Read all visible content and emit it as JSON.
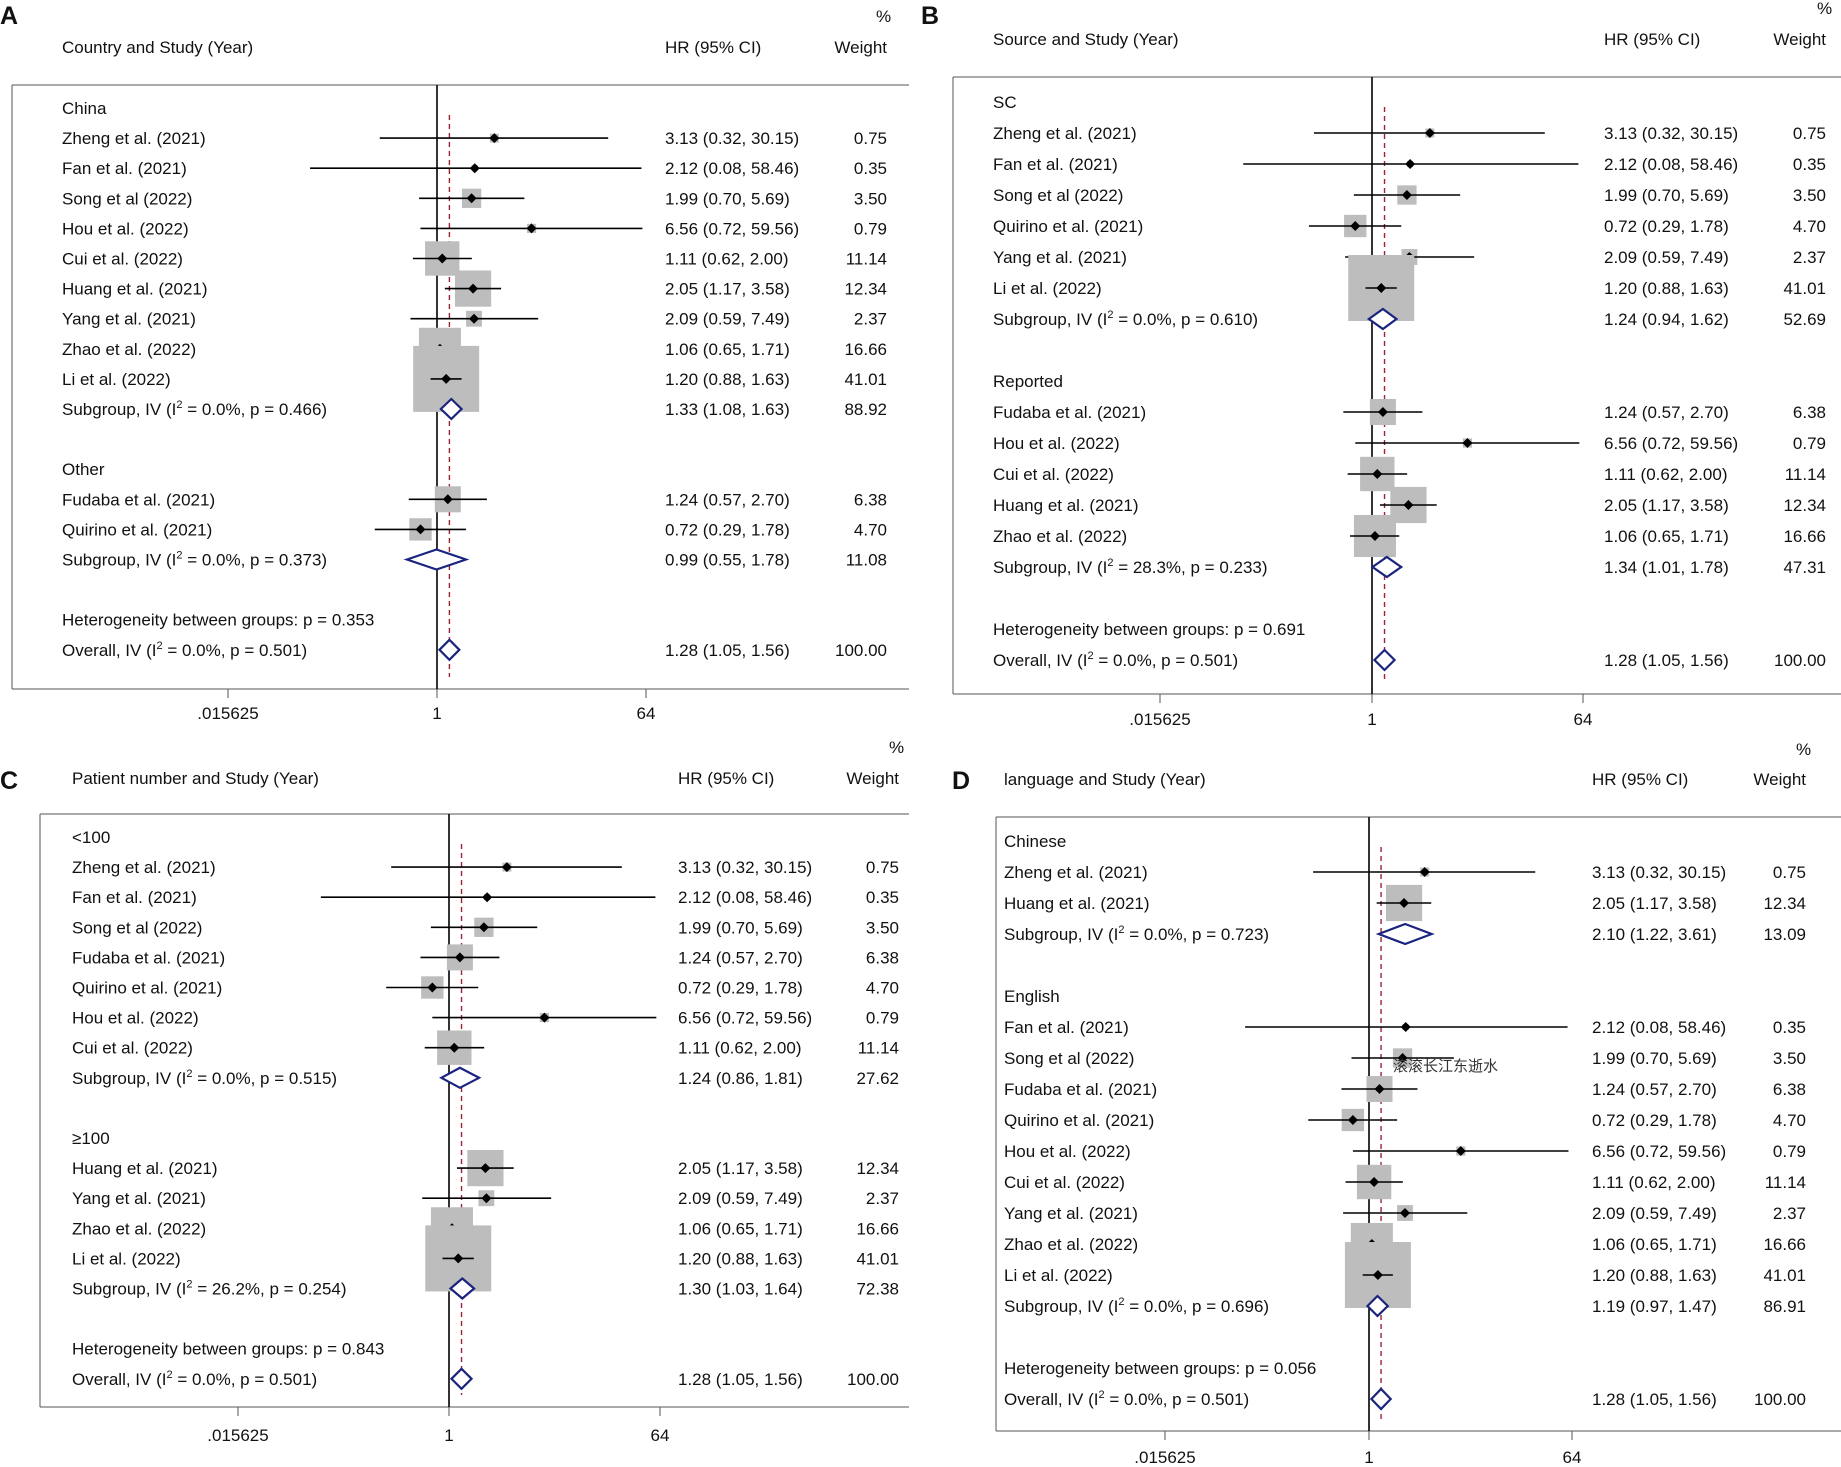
{
  "colors": {
    "null_line": "#000000",
    "overall_line": "#9b2335",
    "box": "#bdbdbd",
    "diamond": "#1a237e",
    "frame": "#555555",
    "text": "#111111"
  },
  "watermark": "滚滚长江东逝水",
  "chart_data": [
    {
      "type": "forest",
      "panel": "A",
      "header": {
        "study_col": "Country and Study (Year)",
        "ci_col": "HR (95% CI)",
        "weight_pct": "%",
        "weight_col": "Weight"
      },
      "xscale": "log2",
      "xlim": [
        0.015625,
        64
      ],
      "ticks": [
        {
          "value": 0.015625,
          "label": ".015625"
        },
        {
          "value": 1,
          "label": "1"
        },
        {
          "value": 64,
          "label": "64"
        }
      ],
      "overall_effect": 1.28,
      "rows": [
        {
          "kind": "group",
          "label": "China"
        },
        {
          "kind": "study",
          "label": "Zheng et al. (2021)",
          "hr": 3.13,
          "lo": 0.32,
          "hi": 30.15,
          "ci": "3.13 (0.32, 30.15)",
          "weight": "0.75"
        },
        {
          "kind": "study",
          "label": "Fan et al. (2021)",
          "hr": 2.12,
          "lo": 0.08,
          "hi": 58.46,
          "ci": "2.12 (0.08, 58.46)",
          "weight": "0.35"
        },
        {
          "kind": "study",
          "label": "Song  et al (2022)",
          "hr": 1.99,
          "lo": 0.7,
          "hi": 5.69,
          "ci": "1.99 (0.70, 5.69)",
          "weight": "3.50"
        },
        {
          "kind": "study",
          "label": "Hou et al. (2022)",
          "hr": 6.56,
          "lo": 0.72,
          "hi": 59.56,
          "ci": "6.56 (0.72, 59.56)",
          "weight": "0.79"
        },
        {
          "kind": "study",
          "label": "Cui et al. (2022)",
          "hr": 1.11,
          "lo": 0.62,
          "hi": 2.0,
          "ci": "1.11 (0.62, 2.00)",
          "weight": "11.14"
        },
        {
          "kind": "study",
          "label": "Huang et al. (2021)",
          "hr": 2.05,
          "lo": 1.17,
          "hi": 3.58,
          "ci": "2.05 (1.17, 3.58)",
          "weight": "12.34"
        },
        {
          "kind": "study",
          "label": "Yang et al. (2021)",
          "hr": 2.09,
          "lo": 0.59,
          "hi": 7.49,
          "ci": "2.09 (0.59, 7.49)",
          "weight": "2.37"
        },
        {
          "kind": "study",
          "label": "Zhao et al. (2022)",
          "hr": 1.06,
          "lo": 0.65,
          "hi": 1.71,
          "ci": "1.06 (0.65, 1.71)",
          "weight": "16.66"
        },
        {
          "kind": "study",
          "label": "Li et al. (2022)",
          "hr": 1.2,
          "lo": 0.88,
          "hi": 1.63,
          "ci": "1.20 (0.88, 1.63)",
          "weight": "41.01"
        },
        {
          "kind": "subgroup",
          "label": "Subgroup, IV (I",
          "stat": " = 0.0%, p = 0.466)",
          "hr": 1.33,
          "lo": 1.08,
          "hi": 1.63,
          "ci": "1.33 (1.08, 1.63)",
          "weight": "88.92"
        },
        {
          "kind": "blank"
        },
        {
          "kind": "group",
          "label": "Other"
        },
        {
          "kind": "study",
          "label": "Fudaba et al. (2021)",
          "hr": 1.24,
          "lo": 0.57,
          "hi": 2.7,
          "ci": "1.24 (0.57, 2.70)",
          "weight": "6.38"
        },
        {
          "kind": "study",
          "label": "Quirino et al. (2021)",
          "hr": 0.72,
          "lo": 0.29,
          "hi": 1.78,
          "ci": "0.72 (0.29, 1.78)",
          "weight": "4.70"
        },
        {
          "kind": "subgroup",
          "label": "Subgroup, IV (I",
          "stat": " = 0.0%, p = 0.373)",
          "hr": 0.99,
          "lo": 0.55,
          "hi": 1.78,
          "ci": "0.99 (0.55, 1.78)",
          "weight": "11.08"
        },
        {
          "kind": "blank"
        },
        {
          "kind": "text",
          "label": "Heterogeneity between groups: p = 0.353"
        },
        {
          "kind": "overall",
          "label": "Overall, IV (I",
          "stat": " = 0.0%, p = 0.501)",
          "hr": 1.28,
          "lo": 1.05,
          "hi": 1.56,
          "ci": "1.28 (1.05, 1.56)",
          "weight": "100.00"
        }
      ]
    },
    {
      "type": "forest",
      "panel": "B",
      "header": {
        "study_col": "Source and Study (Year)",
        "ci_col": "HR (95% CI)",
        "weight_pct": "%",
        "weight_col": "Weight"
      },
      "xscale": "log2",
      "xlim": [
        0.015625,
        64
      ],
      "ticks": [
        {
          "value": 0.015625,
          "label": ".015625"
        },
        {
          "value": 1,
          "label": "1"
        },
        {
          "value": 64,
          "label": "64"
        }
      ],
      "overall_effect": 1.28,
      "rows": [
        {
          "kind": "group",
          "label": "SC"
        },
        {
          "kind": "study",
          "label": "Zheng et al. (2021)",
          "hr": 3.13,
          "lo": 0.32,
          "hi": 30.15,
          "ci": "3.13 (0.32, 30.15)",
          "weight": "0.75"
        },
        {
          "kind": "study",
          "label": "Fan et al. (2021)",
          "hr": 2.12,
          "lo": 0.08,
          "hi": 58.46,
          "ci": "2.12 (0.08, 58.46)",
          "weight": "0.35"
        },
        {
          "kind": "study",
          "label": "Song  et al (2022)",
          "hr": 1.99,
          "lo": 0.7,
          "hi": 5.69,
          "ci": "1.99 (0.70, 5.69)",
          "weight": "3.50"
        },
        {
          "kind": "study",
          "label": "Quirino et al. (2021)",
          "hr": 0.72,
          "lo": 0.29,
          "hi": 1.78,
          "ci": "0.72 (0.29, 1.78)",
          "weight": "4.70"
        },
        {
          "kind": "study",
          "label": "Yang et al. (2021)",
          "hr": 2.09,
          "lo": 0.59,
          "hi": 7.49,
          "ci": "2.09 (0.59, 7.49)",
          "weight": "2.37"
        },
        {
          "kind": "study",
          "label": "Li et al. (2022)",
          "hr": 1.2,
          "lo": 0.88,
          "hi": 1.63,
          "ci": "1.20 (0.88, 1.63)",
          "weight": "41.01"
        },
        {
          "kind": "subgroup",
          "label": "Subgroup, IV (I",
          "stat": " = 0.0%, p = 0.610)",
          "hr": 1.24,
          "lo": 0.94,
          "hi": 1.62,
          "ci": "1.24 (0.94, 1.62)",
          "weight": "52.69"
        },
        {
          "kind": "blank"
        },
        {
          "kind": "group",
          "label": "Reported"
        },
        {
          "kind": "study",
          "label": "Fudaba et al. (2021)",
          "hr": 1.24,
          "lo": 0.57,
          "hi": 2.7,
          "ci": "1.24 (0.57, 2.70)",
          "weight": "6.38"
        },
        {
          "kind": "study",
          "label": "Hou et al. (2022)",
          "hr": 6.56,
          "lo": 0.72,
          "hi": 59.56,
          "ci": "6.56 (0.72, 59.56)",
          "weight": "0.79"
        },
        {
          "kind": "study",
          "label": "Cui et al. (2022)",
          "hr": 1.11,
          "lo": 0.62,
          "hi": 2.0,
          "ci": "1.11 (0.62, 2.00)",
          "weight": "11.14"
        },
        {
          "kind": "study",
          "label": "Huang et al. (2021)",
          "hr": 2.05,
          "lo": 1.17,
          "hi": 3.58,
          "ci": "2.05 (1.17, 3.58)",
          "weight": "12.34"
        },
        {
          "kind": "study",
          "label": "Zhao et al. (2022)",
          "hr": 1.06,
          "lo": 0.65,
          "hi": 1.71,
          "ci": "1.06 (0.65, 1.71)",
          "weight": "16.66"
        },
        {
          "kind": "subgroup",
          "label": "Subgroup, IV (I",
          "stat": " = 28.3%, p = 0.233)",
          "hr": 1.34,
          "lo": 1.01,
          "hi": 1.78,
          "ci": "1.34 (1.01, 1.78)",
          "weight": "47.31"
        },
        {
          "kind": "blank"
        },
        {
          "kind": "text",
          "label": "Heterogeneity between groups: p = 0.691"
        },
        {
          "kind": "overall",
          "label": "Overall, IV (I",
          "stat": " = 0.0%, p = 0.501)",
          "hr": 1.28,
          "lo": 1.05,
          "hi": 1.56,
          "ci": "1.28 (1.05, 1.56)",
          "weight": "100.00"
        }
      ]
    },
    {
      "type": "forest",
      "panel": "C",
      "header": {
        "study_col": "Patient number and Study (Year)",
        "ci_col": "HR (95% CI)",
        "weight_pct": "%",
        "weight_col": "Weight"
      },
      "xscale": "log2",
      "xlim": [
        0.015625,
        64
      ],
      "ticks": [
        {
          "value": 0.015625,
          "label": ".015625"
        },
        {
          "value": 1,
          "label": "1"
        },
        {
          "value": 64,
          "label": "64"
        }
      ],
      "overall_effect": 1.28,
      "rows": [
        {
          "kind": "group",
          "label": "<100"
        },
        {
          "kind": "study",
          "label": "Zheng et al. (2021)",
          "hr": 3.13,
          "lo": 0.32,
          "hi": 30.15,
          "ci": "3.13 (0.32, 30.15)",
          "weight": "0.75"
        },
        {
          "kind": "study",
          "label": "Fan et al. (2021)",
          "hr": 2.12,
          "lo": 0.08,
          "hi": 58.46,
          "ci": "2.12 (0.08, 58.46)",
          "weight": "0.35"
        },
        {
          "kind": "study",
          "label": "Song  et al (2022)",
          "hr": 1.99,
          "lo": 0.7,
          "hi": 5.69,
          "ci": "1.99 (0.70, 5.69)",
          "weight": "3.50"
        },
        {
          "kind": "study",
          "label": "Fudaba et al. (2021)",
          "hr": 1.24,
          "lo": 0.57,
          "hi": 2.7,
          "ci": "1.24 (0.57, 2.70)",
          "weight": "6.38"
        },
        {
          "kind": "study",
          "label": "Quirino et al. (2021)",
          "hr": 0.72,
          "lo": 0.29,
          "hi": 1.78,
          "ci": "0.72 (0.29, 1.78)",
          "weight": "4.70"
        },
        {
          "kind": "study",
          "label": "Hou et al. (2022)",
          "hr": 6.56,
          "lo": 0.72,
          "hi": 59.56,
          "ci": "6.56 (0.72, 59.56)",
          "weight": "0.79"
        },
        {
          "kind": "study",
          "label": "Cui et al. (2022)",
          "hr": 1.11,
          "lo": 0.62,
          "hi": 2.0,
          "ci": "1.11 (0.62, 2.00)",
          "weight": "11.14"
        },
        {
          "kind": "subgroup",
          "label": "Subgroup, IV (I",
          "stat": " = 0.0%, p = 0.515)",
          "hr": 1.24,
          "lo": 0.86,
          "hi": 1.81,
          "ci": "1.24 (0.86, 1.81)",
          "weight": "27.62"
        },
        {
          "kind": "blank"
        },
        {
          "kind": "group",
          "label": "≥100"
        },
        {
          "kind": "study",
          "label": "Huang et al. (2021)",
          "hr": 2.05,
          "lo": 1.17,
          "hi": 3.58,
          "ci": "2.05 (1.17, 3.58)",
          "weight": "12.34"
        },
        {
          "kind": "study",
          "label": "Yang et al. (2021)",
          "hr": 2.09,
          "lo": 0.59,
          "hi": 7.49,
          "ci": "2.09 (0.59, 7.49)",
          "weight": "2.37"
        },
        {
          "kind": "study",
          "label": "Zhao et al. (2022)",
          "hr": 1.06,
          "lo": 0.65,
          "hi": 1.71,
          "ci": "1.06 (0.65, 1.71)",
          "weight": "16.66"
        },
        {
          "kind": "study",
          "label": "Li et al. (2022)",
          "hr": 1.2,
          "lo": 0.88,
          "hi": 1.63,
          "ci": "1.20 (0.88, 1.63)",
          "weight": "41.01"
        },
        {
          "kind": "subgroup",
          "label": "Subgroup, IV (I",
          "stat": " = 26.2%, p = 0.254)",
          "hr": 1.3,
          "lo": 1.03,
          "hi": 1.64,
          "ci": "1.30 (1.03, 1.64)",
          "weight": "72.38"
        },
        {
          "kind": "blank"
        },
        {
          "kind": "text",
          "label": "Heterogeneity between groups: p = 0.843"
        },
        {
          "kind": "overall",
          "label": "Overall, IV (I",
          "stat": " = 0.0%, p = 0.501)",
          "hr": 1.28,
          "lo": 1.05,
          "hi": 1.56,
          "ci": "1.28 (1.05, 1.56)",
          "weight": "100.00"
        }
      ]
    },
    {
      "type": "forest",
      "panel": "D",
      "header": {
        "study_col": "language and Study (Year)",
        "ci_col": "HR (95% CI)",
        "weight_pct": "%",
        "weight_col": "Weight"
      },
      "xscale": "log2",
      "xlim": [
        0.015625,
        64
      ],
      "ticks": [
        {
          "value": 0.015625,
          "label": ".015625"
        },
        {
          "value": 1,
          "label": "1"
        },
        {
          "value": 64,
          "label": "64"
        }
      ],
      "overall_effect": 1.28,
      "rows": [
        {
          "kind": "group",
          "label": "Chinese"
        },
        {
          "kind": "study",
          "label": "Zheng et al. (2021)",
          "hr": 3.13,
          "lo": 0.32,
          "hi": 30.15,
          "ci": "3.13 (0.32, 30.15)",
          "weight": "0.75"
        },
        {
          "kind": "study",
          "label": "Huang et al. (2021)",
          "hr": 2.05,
          "lo": 1.17,
          "hi": 3.58,
          "ci": "2.05 (1.17, 3.58)",
          "weight": "12.34"
        },
        {
          "kind": "subgroup",
          "label": "Subgroup, IV (I",
          "stat": " = 0.0%, p = 0.723)",
          "hr": 2.1,
          "lo": 1.22,
          "hi": 3.61,
          "ci": "2.10 (1.22, 3.61)",
          "weight": "13.09"
        },
        {
          "kind": "blank"
        },
        {
          "kind": "group",
          "label": "English"
        },
        {
          "kind": "study",
          "label": "Fan et al. (2021)",
          "hr": 2.12,
          "lo": 0.08,
          "hi": 58.46,
          "ci": "2.12 (0.08, 58.46)",
          "weight": "0.35"
        },
        {
          "kind": "study",
          "label": "Song  et al (2022)",
          "hr": 1.99,
          "lo": 0.7,
          "hi": 5.69,
          "ci": "1.99 (0.70, 5.69)",
          "weight": "3.50"
        },
        {
          "kind": "study",
          "label": "Fudaba et al. (2021)",
          "hr": 1.24,
          "lo": 0.57,
          "hi": 2.7,
          "ci": "1.24 (0.57, 2.70)",
          "weight": "6.38"
        },
        {
          "kind": "study",
          "label": "Quirino et al. (2021)",
          "hr": 0.72,
          "lo": 0.29,
          "hi": 1.78,
          "ci": "0.72 (0.29, 1.78)",
          "weight": "4.70"
        },
        {
          "kind": "study",
          "label": "Hou et al. (2022)",
          "hr": 6.56,
          "lo": 0.72,
          "hi": 59.56,
          "ci": "6.56 (0.72, 59.56)",
          "weight": "0.79"
        },
        {
          "kind": "study",
          "label": "Cui et al. (2022)",
          "hr": 1.11,
          "lo": 0.62,
          "hi": 2.0,
          "ci": "1.11 (0.62, 2.00)",
          "weight": "11.14"
        },
        {
          "kind": "study",
          "label": "Yang et al. (2021)",
          "hr": 2.09,
          "lo": 0.59,
          "hi": 7.49,
          "ci": "2.09 (0.59, 7.49)",
          "weight": "2.37"
        },
        {
          "kind": "study",
          "label": "Zhao et al. (2022)",
          "hr": 1.06,
          "lo": 0.65,
          "hi": 1.71,
          "ci": "1.06 (0.65, 1.71)",
          "weight": "16.66"
        },
        {
          "kind": "study",
          "label": "Li et al. (2022)",
          "hr": 1.2,
          "lo": 0.88,
          "hi": 1.63,
          "ci": "1.20 (0.88, 1.63)",
          "weight": "41.01"
        },
        {
          "kind": "subgroup",
          "label": "Subgroup, IV (I",
          "stat": " = 0.0%, p = 0.696)",
          "hr": 1.19,
          "lo": 0.97,
          "hi": 1.47,
          "ci": "1.19 (0.97, 1.47)",
          "weight": "86.91"
        },
        {
          "kind": "blank"
        },
        {
          "kind": "text",
          "label": "Heterogeneity between groups: p = 0.056"
        },
        {
          "kind": "overall",
          "label": "Overall, IV (I",
          "stat": " = 0.0%, p = 0.501)",
          "hr": 1.28,
          "lo": 1.05,
          "hi": 1.56,
          "ci": "1.28 (1.05, 1.56)",
          "weight": "100.00"
        }
      ]
    }
  ]
}
